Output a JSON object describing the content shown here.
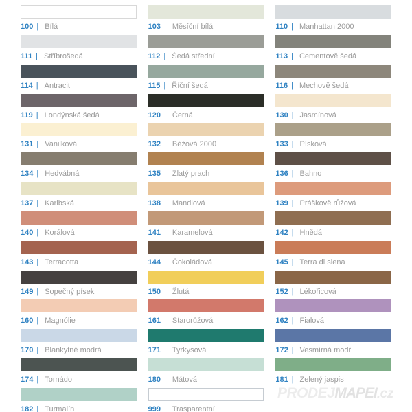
{
  "separator": "|",
  "text_colors": {
    "code_blue": "#2f82c2",
    "name_gray": "#9b9b9b"
  },
  "watermark": {
    "prodej": "PRODEJ",
    "mapei": "MAPEI",
    "cz": ".cz"
  },
  "columns": [
    {
      "items": [
        {
          "code": "100",
          "name": "Bílá",
          "hex": "#ffffff",
          "border": "#d8d8d8"
        },
        {
          "code": "111",
          "name": "Stříbrošedá",
          "hex": "#e1e3e5"
        },
        {
          "code": "114",
          "name": "Antracit",
          "hex": "#49535b"
        },
        {
          "code": "119",
          "name": "Londýnská šedá",
          "hex": "#6d6569"
        },
        {
          "code": "131",
          "name": "Vanilková",
          "hex": "#fbf0d2"
        },
        {
          "code": "134",
          "name": "Hedvábná",
          "hex": "#867d6f"
        },
        {
          "code": "137",
          "name": "Karibská",
          "hex": "#e7e3c5"
        },
        {
          "code": "140",
          "name": "Korálová",
          "hex": "#d08e79"
        },
        {
          "code": "143",
          "name": "Terracotta",
          "hex": "#a4634f"
        },
        {
          "code": "149",
          "name": "Sopečný písek",
          "hex": "#454140"
        },
        {
          "code": "160",
          "name": "Magnólie",
          "hex": "#f3ccb4"
        },
        {
          "code": "170",
          "name": "Blankytně modrá",
          "hex": "#cad8e7"
        },
        {
          "code": "174",
          "name": "Tornádo",
          "hex": "#4c5451"
        },
        {
          "code": "182",
          "name": "Turmalín",
          "hex": "#b0d1c7"
        }
      ]
    },
    {
      "items": [
        {
          "code": "103",
          "name": "Měsíční bílá",
          "hex": "#e3e7da"
        },
        {
          "code": "112",
          "name": "Šedá střední",
          "hex": "#9b9d97"
        },
        {
          "code": "115",
          "name": "Říční šedá",
          "hex": "#96a89e"
        },
        {
          "code": "120",
          "name": "Černá",
          "hex": "#2b2e28"
        },
        {
          "code": "132",
          "name": "Béžová 2000",
          "hex": "#ebd3b0"
        },
        {
          "code": "135",
          "name": "Zlatý prach",
          "hex": "#b18250"
        },
        {
          "code": "138",
          "name": "Mandlová",
          "hex": "#e9c59a"
        },
        {
          "code": "141",
          "name": "Karamelová",
          "hex": "#c29978"
        },
        {
          "code": "144",
          "name": "Čokoládová",
          "hex": "#6b5240"
        },
        {
          "code": "150",
          "name": "Žlutá",
          "hex": "#f1ce5a"
        },
        {
          "code": "161",
          "name": "Starorůžová",
          "hex": "#d2796b"
        },
        {
          "code": "171",
          "name": "Tyrkysová",
          "hex": "#1f7a6e"
        },
        {
          "code": "180",
          "name": "Mátová",
          "hex": "#c6dfd5"
        },
        {
          "code": "999",
          "name": "Trasparentní",
          "hex": "#ffffff",
          "border": "#c6ccd2"
        }
      ]
    },
    {
      "items": [
        {
          "code": "110",
          "name": "Manhattan 2000",
          "hex": "#d8dcdf"
        },
        {
          "code": "113",
          "name": "Cementově šedá",
          "hex": "#83837b"
        },
        {
          "code": "116",
          "name": "Mechově šedá",
          "hex": "#8d877b"
        },
        {
          "code": "130",
          "name": "Jasmínová",
          "hex": "#f4e6ce"
        },
        {
          "code": "133",
          "name": "Písková",
          "hex": "#aba089"
        },
        {
          "code": "136",
          "name": "Bahno",
          "hex": "#5e5047"
        },
        {
          "code": "139",
          "name": "Práškově růžová",
          "hex": "#dd9b7c"
        },
        {
          "code": "142",
          "name": "Hnědá",
          "hex": "#8f6e51"
        },
        {
          "code": "145",
          "name": "Terra di siena",
          "hex": "#ca7c58"
        },
        {
          "code": "152",
          "name": "Lékořicová",
          "hex": "#8a6647"
        },
        {
          "code": "162",
          "name": "Fialová",
          "hex": "#af92bd"
        },
        {
          "code": "172",
          "name": "Vesmírná modř",
          "hex": "#5b76a6"
        },
        {
          "code": "181",
          "name": "Zelený jaspis",
          "hex": "#7fae88"
        }
      ]
    }
  ]
}
